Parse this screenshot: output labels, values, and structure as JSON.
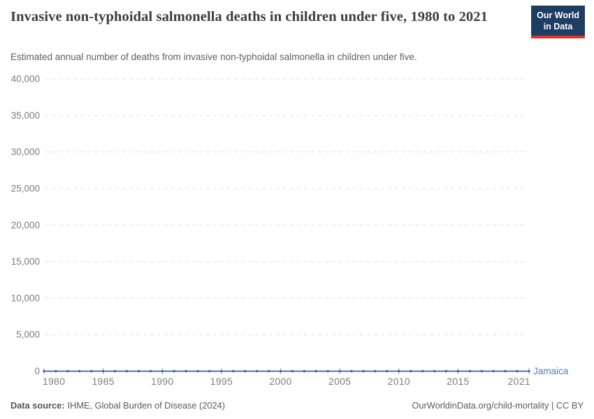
{
  "header": {
    "title": "Invasive non-typhoidal salmonella deaths in children under five, 1980 to 2021",
    "subtitle": "Estimated annual number of deaths from invasive non-typhoidal salmonella in children under five.",
    "logo": {
      "line1": "Our World",
      "line2": "in Data"
    }
  },
  "chart_data": {
    "type": "line",
    "title": "Invasive non-typhoidal salmonella deaths in children under five, 1980 to 2021",
    "xlabel": "",
    "ylabel": "",
    "x": [
      1980,
      1981,
      1982,
      1983,
      1984,
      1985,
      1986,
      1987,
      1988,
      1989,
      1990,
      1991,
      1992,
      1993,
      1994,
      1995,
      1996,
      1997,
      1998,
      1999,
      2000,
      2001,
      2002,
      2003,
      2004,
      2005,
      2006,
      2007,
      2008,
      2009,
      2010,
      2011,
      2012,
      2013,
      2014,
      2015,
      2016,
      2017,
      2018,
      2019,
      2020,
      2021
    ],
    "series": [
      {
        "name": "Jamaica",
        "color": "#3d63a8",
        "values": [
          0,
          0,
          0,
          0,
          0,
          0,
          0,
          0,
          0,
          0,
          0,
          0,
          0,
          0,
          0,
          0,
          0,
          0,
          0,
          0,
          0,
          0,
          0,
          0,
          0,
          0,
          0,
          0,
          0,
          0,
          0,
          0,
          0,
          0,
          0,
          0,
          0,
          0,
          0,
          0,
          0,
          0
        ]
      }
    ],
    "end_label": "Jamaica",
    "x_ticks": [
      1980,
      1985,
      1990,
      1995,
      2000,
      2005,
      2010,
      2015,
      2021
    ],
    "x_tick_labels": [
      "1980",
      "1985",
      "1990",
      "1995",
      "2000",
      "2005",
      "2010",
      "2015",
      "2021"
    ],
    "y_ticks": [
      0,
      5000,
      10000,
      15000,
      20000,
      25000,
      30000,
      35000,
      40000
    ],
    "y_tick_labels": [
      "0",
      "5,000",
      "10,000",
      "15,000",
      "20,000",
      "25,000",
      "30,000",
      "35,000",
      "40,000"
    ],
    "xlim": [
      1980,
      2021
    ],
    "ylim": [
      0,
      40000
    ],
    "grid": "dashed-horizontal",
    "legend_position": "end-of-line"
  },
  "footer": {
    "source_label": "Data source:",
    "source_text": "IHME, Global Burden of Disease (2024)",
    "credit": "OurWorldinData.org/child-mortality | CC BY"
  },
  "colors": {
    "line": "#3d63a8",
    "end_label": "#5b79b5",
    "grid": "#e0e0e0",
    "zero_axis": "#cccccc",
    "axis_tick_label": "#7d7d7d",
    "tick_mark": "#a8a8a8",
    "title": "#3d3d3d",
    "subtitle": "#5f5f5f",
    "footer_text": "#5b5b5b",
    "logo_bg": "#1d3d63",
    "logo_accent": "#e0342d",
    "background": "#ffffff"
  }
}
